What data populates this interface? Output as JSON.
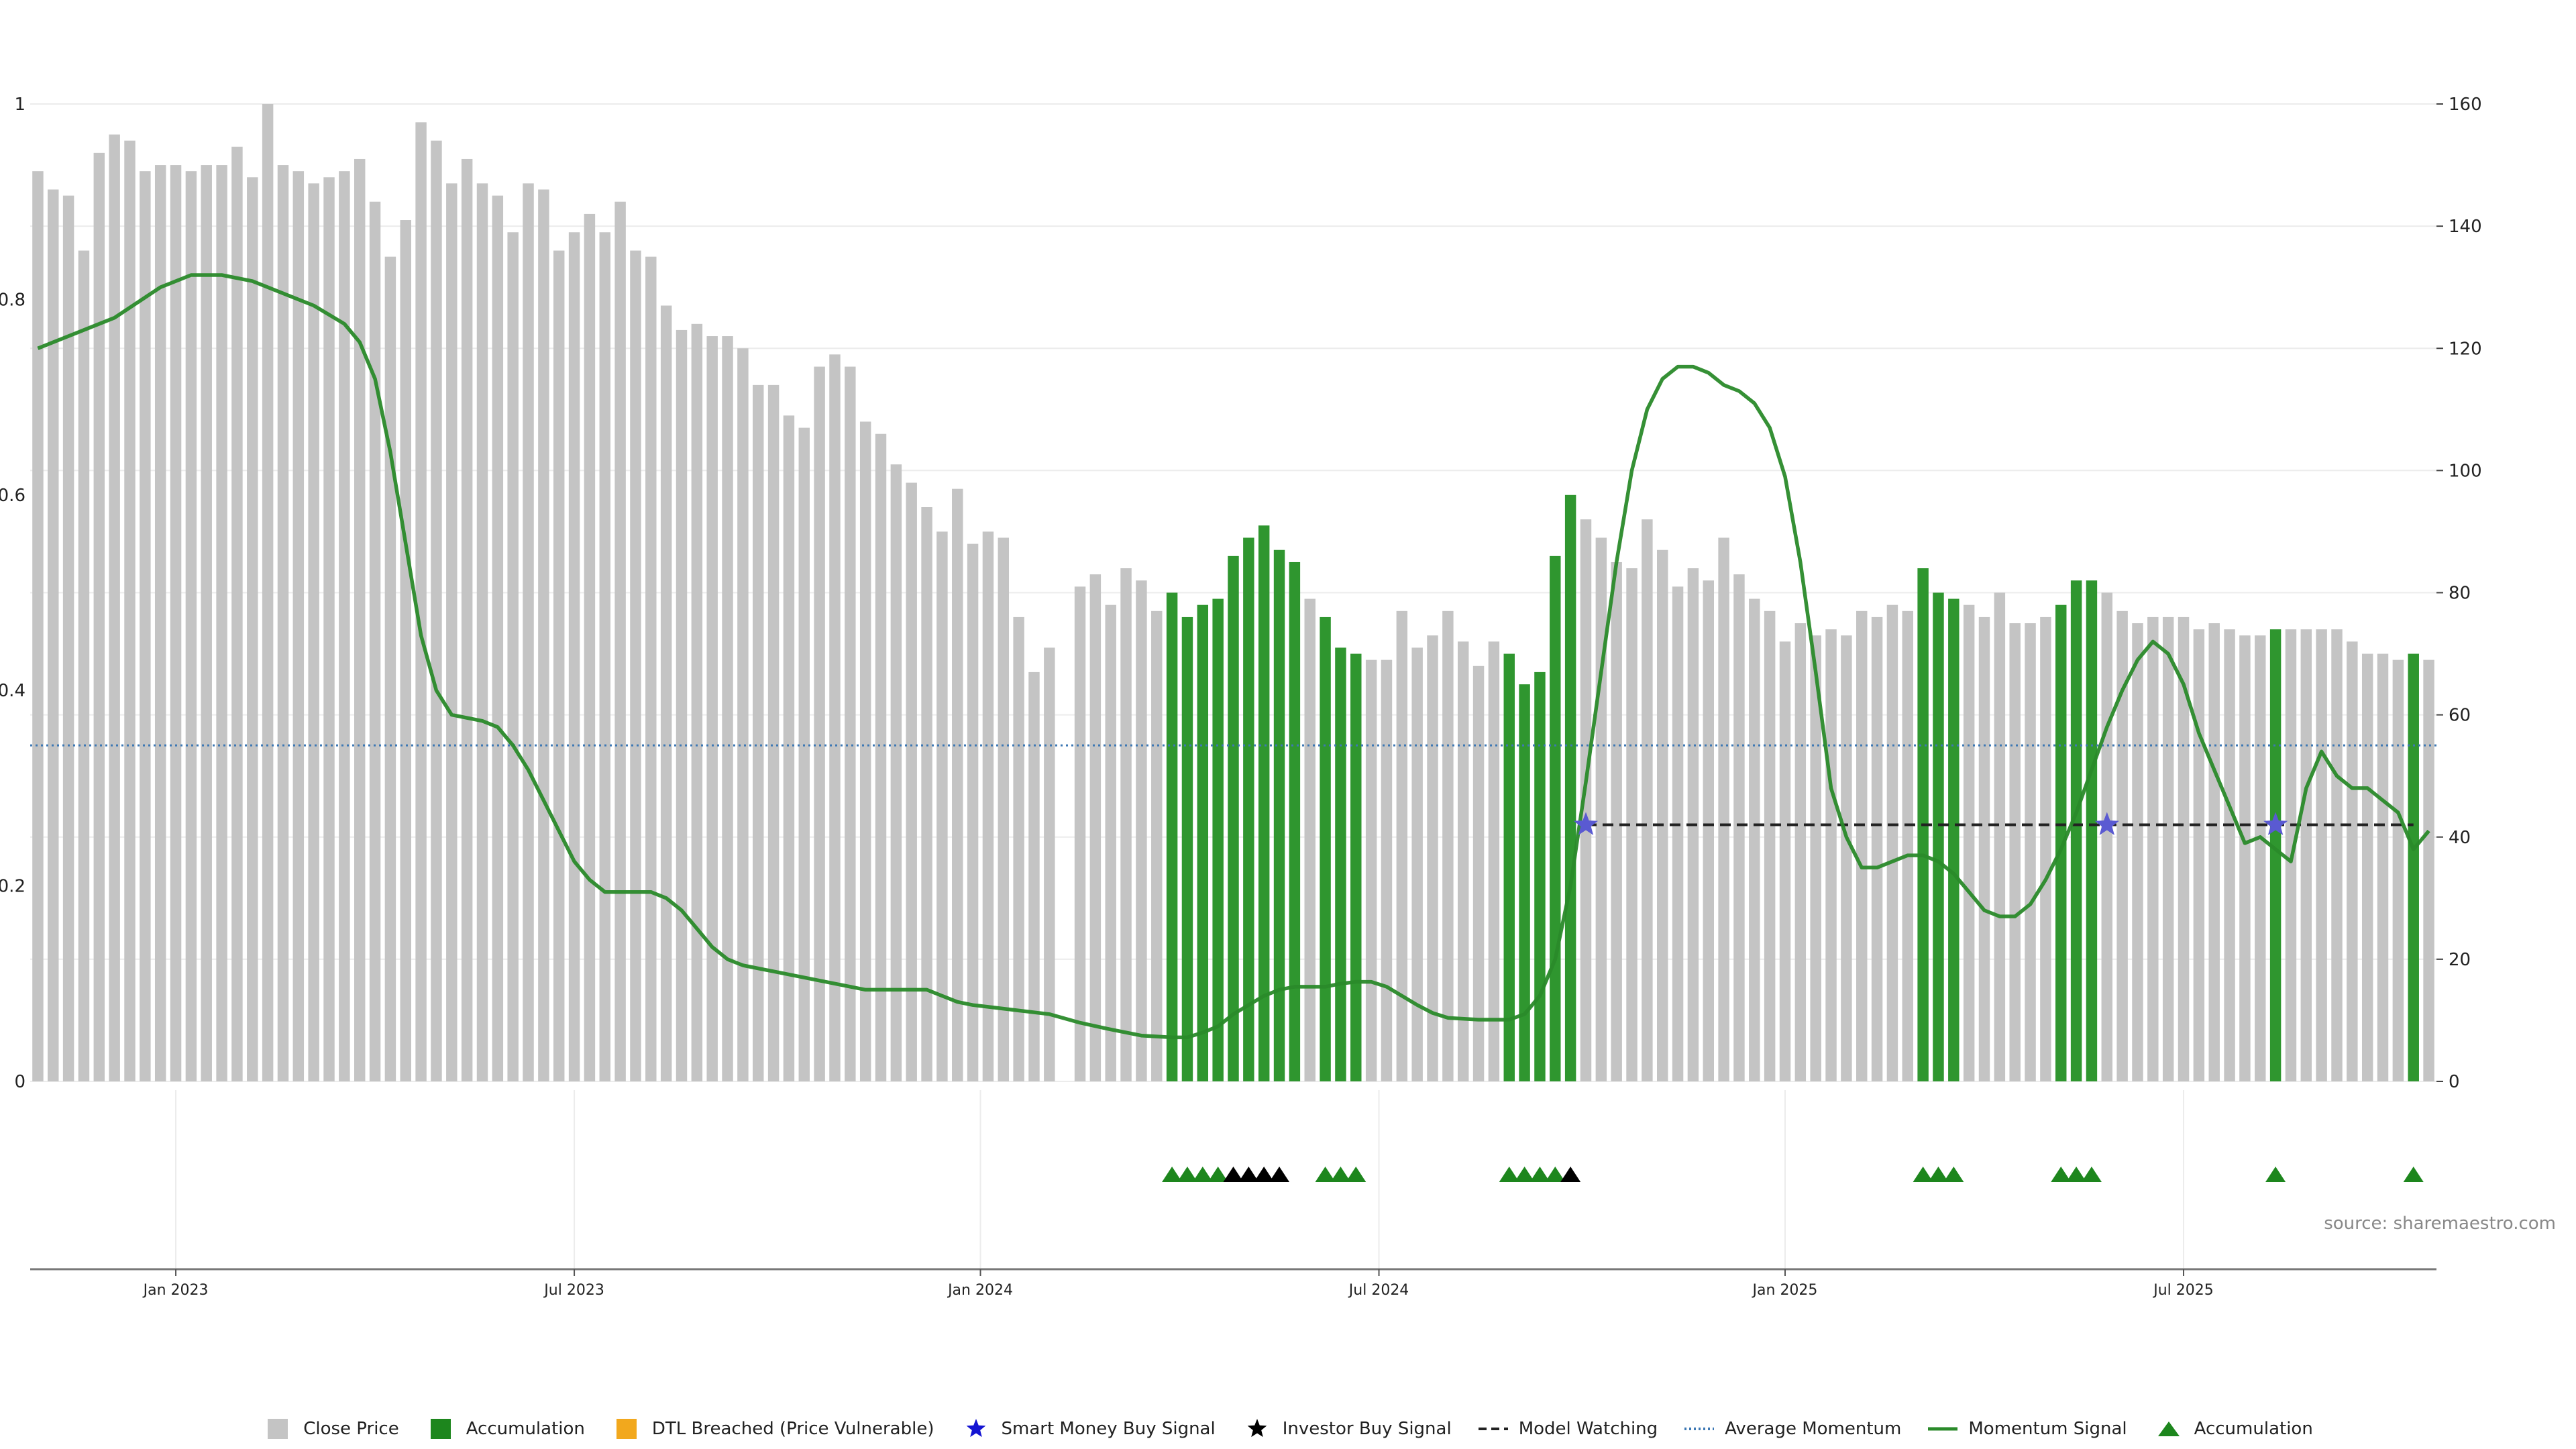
{
  "chart_data": {
    "type": "bar",
    "source_text": "source: sharemaestro.com",
    "left_axis": {
      "range": [
        0,
        1
      ],
      "ticks": [
        "0",
        "0.2",
        "0.4",
        "0.6",
        "0.8",
        "1"
      ]
    },
    "right_axis": {
      "range": [
        0,
        160
      ],
      "ticks": [
        "0",
        "20",
        "40",
        "60",
        "80",
        "100",
        "120",
        "140",
        "160"
      ]
    },
    "x_ticks": [
      {
        "label": "Jan 2023",
        "week": 9
      },
      {
        "label": "Jul 2023",
        "week": 35
      },
      {
        "label": "Jan 2024",
        "week": 61.5
      },
      {
        "label": "Jul 2024",
        "week": 87.5
      },
      {
        "label": "Jan 2025",
        "week": 114
      },
      {
        "label": "Jul 2025",
        "week": 140
      }
    ],
    "grid": true,
    "legend_position": "bottom-center",
    "colors": {
      "close": "#c4c4c4",
      "accumulation": "#2f962f",
      "dtl": "#f2a81d",
      "smart_money": "#1414d2",
      "investor": "#000000",
      "model_watching": "#222222",
      "avg_momentum": "#3d78b4",
      "momentum": "#2a8a2a",
      "triangle": "#1d861d",
      "star_marker": "#5a5ad2"
    },
    "weekly_close": [
      149,
      146,
      145,
      136,
      152,
      155,
      154,
      149,
      150,
      150,
      149,
      150,
      150,
      153,
      148,
      160,
      150,
      149,
      147,
      148,
      149,
      151,
      144,
      135,
      141,
      157,
      154,
      147,
      151,
      147,
      145,
      139,
      147,
      146,
      136,
      139,
      142,
      139,
      144,
      136,
      135,
      127,
      123,
      124,
      122,
      122,
      120,
      114,
      114,
      109,
      107,
      117,
      119,
      117,
      108,
      106,
      101,
      98,
      94,
      90,
      97,
      88,
      90,
      89,
      76,
      67,
      71,
      null,
      81,
      83,
      78,
      84,
      82,
      77,
      80,
      76,
      78,
      79,
      86,
      89,
      91,
      87,
      85,
      79,
      76,
      71,
      70,
      69,
      69,
      77,
      71,
      73,
      77,
      72,
      68,
      72,
      70,
      65,
      67,
      86,
      96,
      92,
      89,
      85,
      84,
      92,
      87,
      81,
      84,
      82,
      89,
      83,
      79,
      77,
      72,
      75,
      73,
      74,
      73,
      77,
      76,
      78,
      77,
      84,
      80,
      79,
      78,
      76,
      80,
      75,
      75,
      76,
      78,
      82,
      82,
      80,
      77,
      75,
      76,
      76,
      76,
      74,
      75,
      74,
      73,
      73,
      74,
      74,
      74,
      74,
      74,
      72,
      70,
      70,
      69,
      70,
      69
    ],
    "accumulation_weeks": [
      74,
      75,
      76,
      77,
      78,
      79,
      80,
      81,
      82,
      84,
      85,
      86,
      96,
      97,
      98,
      99,
      100,
      123,
      124,
      125,
      132,
      133,
      134,
      146,
      155
    ],
    "triangle_weeks_green": [
      74,
      75,
      76,
      77,
      84,
      85,
      86,
      96,
      97,
      98,
      99,
      123,
      124,
      125,
      132,
      133,
      134,
      146,
      155
    ],
    "triangle_weeks_black": [
      78,
      79,
      80,
      81,
      100
    ],
    "smart_money_stars": [
      {
        "week": 101,
        "value": 42
      },
      {
        "week": 135,
        "value": 42
      },
      {
        "week": 146,
        "value": 42
      }
    ],
    "model_watching": {
      "from_week": 101,
      "to_week": 155,
      "value": 42
    },
    "average_momentum": 55,
    "momentum_signal": [
      [
        0,
        120
      ],
      [
        3,
        123
      ],
      [
        5,
        125
      ],
      [
        8,
        130
      ],
      [
        10,
        132
      ],
      [
        12,
        132
      ],
      [
        14,
        131
      ],
      [
        16,
        129
      ],
      [
        18,
        127
      ],
      [
        20,
        124
      ],
      [
        21,
        121
      ],
      [
        22,
        115
      ],
      [
        23,
        103
      ],
      [
        24,
        88
      ],
      [
        25,
        73
      ],
      [
        26,
        64
      ],
      [
        27,
        60
      ],
      [
        29,
        59
      ],
      [
        30,
        58
      ],
      [
        31,
        55
      ],
      [
        32,
        51
      ],
      [
        33,
        46
      ],
      [
        34,
        41
      ],
      [
        35,
        36
      ],
      [
        36,
        33
      ],
      [
        37,
        31
      ],
      [
        38,
        31
      ],
      [
        40,
        31
      ],
      [
        41,
        30
      ],
      [
        42,
        28
      ],
      [
        43,
        25
      ],
      [
        44,
        22
      ],
      [
        45,
        20
      ],
      [
        46,
        19
      ],
      [
        48,
        18
      ],
      [
        50,
        17
      ],
      [
        52,
        16
      ],
      [
        54,
        15
      ],
      [
        58,
        15
      ],
      [
        59,
        14
      ],
      [
        60,
        13
      ],
      [
        61,
        12.5
      ],
      [
        62,
        12.2
      ],
      [
        64,
        11.6
      ],
      [
        66,
        11
      ],
      [
        68,
        9.6
      ],
      [
        70,
        8.5
      ],
      [
        72,
        7.5
      ],
      [
        74,
        7.2
      ],
      [
        75,
        7.2
      ],
      [
        76,
        8
      ],
      [
        77,
        9
      ],
      [
        78,
        11
      ],
      [
        79,
        12.5
      ],
      [
        80,
        14
      ],
      [
        81,
        15
      ],
      [
        82,
        15.5
      ],
      [
        84,
        15.5
      ],
      [
        85,
        16
      ],
      [
        86,
        16.3
      ],
      [
        87,
        16.3
      ],
      [
        88,
        15.5
      ],
      [
        89,
        14
      ],
      [
        90,
        12.5
      ],
      [
        91,
        11.2
      ],
      [
        92,
        10.4
      ],
      [
        94,
        10.1
      ],
      [
        96,
        10.1
      ],
      [
        97,
        11
      ],
      [
        98,
        14
      ],
      [
        99,
        20
      ],
      [
        100,
        32
      ],
      [
        101,
        49
      ],
      [
        102,
        67
      ],
      [
        103,
        85
      ],
      [
        104,
        100
      ],
      [
        105,
        110
      ],
      [
        106,
        115
      ],
      [
        107,
        117
      ],
      [
        108,
        117
      ],
      [
        109,
        116
      ],
      [
        110,
        114
      ],
      [
        111,
        113
      ],
      [
        112,
        111
      ],
      [
        113,
        107
      ],
      [
        114,
        99
      ],
      [
        115,
        85
      ],
      [
        116,
        67
      ],
      [
        117,
        48
      ],
      [
        118,
        40
      ],
      [
        119,
        35
      ],
      [
        120,
        35
      ],
      [
        121,
        36
      ],
      [
        122,
        37
      ],
      [
        123,
        37
      ],
      [
        124,
        36
      ],
      [
        125,
        34
      ],
      [
        126,
        31
      ],
      [
        127,
        28
      ],
      [
        128,
        27
      ],
      [
        129,
        27
      ],
      [
        130,
        29
      ],
      [
        131,
        33
      ],
      [
        132,
        38
      ],
      [
        133,
        44
      ],
      [
        134,
        51
      ],
      [
        135,
        58
      ],
      [
        136,
        64
      ],
      [
        137,
        69
      ],
      [
        138,
        72
      ],
      [
        139,
        70
      ],
      [
        140,
        65
      ],
      [
        141,
        57
      ],
      [
        142,
        51
      ],
      [
        143,
        45
      ],
      [
        144,
        39
      ],
      [
        145,
        40
      ],
      [
        146,
        38
      ],
      [
        147,
        36
      ],
      [
        148,
        48
      ],
      [
        149,
        54
      ],
      [
        150,
        50
      ],
      [
        151,
        48
      ],
      [
        152,
        48
      ],
      [
        153,
        46
      ],
      [
        154,
        44
      ],
      [
        155,
        38
      ],
      [
        156,
        41
      ]
    ]
  },
  "legend": [
    {
      "key": "close",
      "label": "Close Price"
    },
    {
      "key": "accum_bar",
      "label": "Accumulation"
    },
    {
      "key": "dtl",
      "label": "DTL Breached (Price Vulnerable)"
    },
    {
      "key": "smart",
      "label": "Smart Money Buy Signal"
    },
    {
      "key": "investor",
      "label": "Investor Buy Signal"
    },
    {
      "key": "watching",
      "label": "Model Watching"
    },
    {
      "key": "avg",
      "label": "Average Momentum"
    },
    {
      "key": "momentum",
      "label": "Momentum Signal"
    },
    {
      "key": "accum_tri",
      "label": "Accumulation"
    }
  ]
}
